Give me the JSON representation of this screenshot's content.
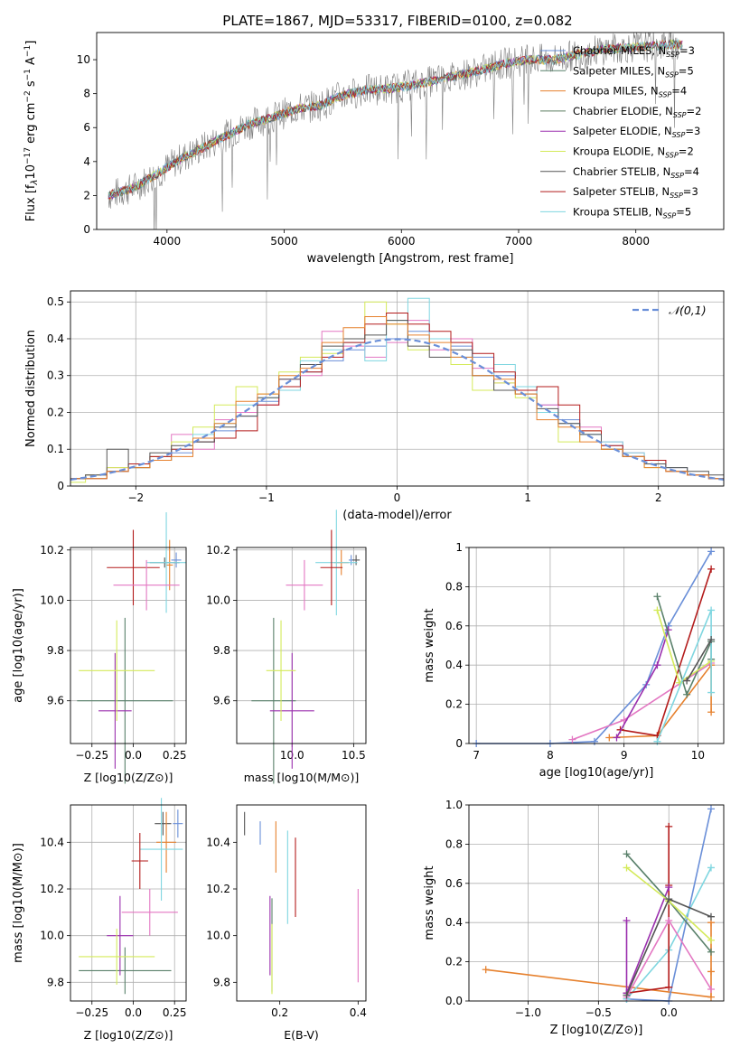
{
  "figure": {
    "title": "PLATE=1867, MJD=53317, FIBERID=0100, z=0.082"
  },
  "chart_data": [
    {
      "id": "spectrum",
      "type": "line",
      "title": "PLATE=1867, MJD=53317, FIBERID=0100, z=0.082",
      "xlabel": "wavelength [Angstrom, rest frame]",
      "ylabel": "Flux [f_λ 10^-17 erg cm^-2 s^-1 A^-1]",
      "xlim": [
        3400,
        8750
      ],
      "ylim": [
        0,
        11.6
      ],
      "xticks": [
        4000,
        5000,
        6000,
        7000,
        8000
      ],
      "yticks": [
        0,
        2,
        4,
        6,
        8,
        10
      ],
      "grid": false,
      "legend_position": "top-right",
      "data_series": {
        "name": "",
        "color": "#808080",
        "x": [
          3500,
          3700,
          3900,
          4100,
          4300,
          4500,
          4700,
          4900,
          5100,
          5300,
          5500,
          5700,
          5900,
          6100,
          6300,
          6500,
          6700,
          6900,
          7100,
          7300,
          7500,
          7700,
          7900,
          8100,
          8300
        ],
        "y": [
          2.0,
          2.4,
          3.2,
          4.1,
          4.8,
          5.5,
          6.2,
          6.6,
          7.1,
          7.3,
          7.9,
          8.2,
          8.3,
          8.5,
          8.8,
          9.1,
          9.4,
          9.8,
          10.0,
          10.0,
          10.3,
          10.6,
          10.7,
          10.8,
          10.9
        ]
      },
      "legend": [
        {
          "label": "Chabrier MILES",
          "nssp": "3",
          "color": "#6a8fd8"
        },
        {
          "label": "Salpeter MILES",
          "nssp": "5",
          "color": "#59806a"
        },
        {
          "label": "Kroupa MILES",
          "nssp": "4",
          "color": "#e6812e"
        },
        {
          "label": "Chabrier ELODIE",
          "nssp": "2",
          "color": "#5b7d5f"
        },
        {
          "label": "Salpeter ELODIE",
          "nssp": "3",
          "color": "#9b2fae"
        },
        {
          "label": "Kroupa ELODIE",
          "nssp": "2",
          "color": "#d4ea5a"
        },
        {
          "label": "Chabrier STELIB",
          "nssp": "4",
          "color": "#555555"
        },
        {
          "label": "Salpeter STELIB",
          "nssp": "3",
          "color": "#b31b1b"
        },
        {
          "label": "Kroupa STELIB",
          "nssp": "5",
          "color": "#7fd6e0"
        }
      ]
    },
    {
      "id": "residuals",
      "type": "histogram",
      "xlabel": "(data-model)/error",
      "ylabel": "Normed distribution",
      "xlim": [
        -2.5,
        2.5
      ],
      "ylim": [
        0,
        0.53
      ],
      "xticks": [
        -2,
        -1,
        0,
        1,
        2
      ],
      "yticks": [
        0.0,
        0.1,
        0.2,
        0.3,
        0.4,
        0.5
      ],
      "grid": true,
      "legend_position": "top-right",
      "reference_curve": {
        "label": "𝒩(0,1)",
        "color": "#6a8fd8",
        "style": "dashed"
      },
      "bin_width": 0.1,
      "series": [
        {
          "color": "#6a8fd8",
          "values": [
            0.02,
            0.03,
            0.04,
            0.05,
            0.07,
            0.09,
            0.12,
            0.15,
            0.19,
            0.23,
            0.27,
            0.31,
            0.34,
            0.37,
            0.38,
            0.4,
            0.42,
            0.4,
            0.38,
            0.35,
            0.3,
            0.26,
            0.22,
            0.18,
            0.14,
            0.11,
            0.08,
            0.06,
            0.04,
            0.03,
            0.02
          ]
        },
        {
          "color": "#e377c2",
          "values": [
            0.02,
            0.03,
            0.05,
            0.06,
            0.08,
            0.14,
            0.1,
            0.18,
            0.2,
            0.22,
            0.29,
            0.3,
            0.42,
            0.38,
            0.35,
            0.39,
            0.45,
            0.37,
            0.4,
            0.32,
            0.28,
            0.26,
            0.22,
            0.17,
            0.16,
            0.12,
            0.09,
            0.07,
            0.05,
            0.03,
            0.02
          ]
        },
        {
          "color": "#d4ea5a",
          "values": [
            0.01,
            0.03,
            0.05,
            0.05,
            0.08,
            0.12,
            0.16,
            0.22,
            0.27,
            0.25,
            0.31,
            0.35,
            0.36,
            0.4,
            0.5,
            0.44,
            0.37,
            0.4,
            0.33,
            0.26,
            0.28,
            0.24,
            0.2,
            0.12,
            0.15,
            0.1,
            0.08,
            0.05,
            0.04,
            0.03,
            0.02
          ]
        },
        {
          "color": "#7fd6e0",
          "values": [
            0.02,
            0.02,
            0.04,
            0.06,
            0.07,
            0.1,
            0.14,
            0.17,
            0.22,
            0.24,
            0.26,
            0.34,
            0.37,
            0.39,
            0.34,
            0.45,
            0.51,
            0.4,
            0.35,
            0.3,
            0.33,
            0.27,
            0.2,
            0.17,
            0.14,
            0.12,
            0.09,
            0.06,
            0.05,
            0.03,
            0.02
          ]
        },
        {
          "color": "#b31b1b",
          "values": [
            0.02,
            0.02,
            0.04,
            0.06,
            0.08,
            0.1,
            0.12,
            0.13,
            0.15,
            0.22,
            0.27,
            0.31,
            0.35,
            0.39,
            0.44,
            0.47,
            0.44,
            0.42,
            0.39,
            0.36,
            0.31,
            0.26,
            0.27,
            0.22,
            0.15,
            0.11,
            0.08,
            0.07,
            0.04,
            0.03,
            0.02
          ]
        },
        {
          "color": "#555555",
          "values": [
            0.02,
            0.03,
            0.1,
            0.05,
            0.09,
            0.11,
            0.12,
            0.16,
            0.19,
            0.24,
            0.29,
            0.33,
            0.38,
            0.4,
            0.41,
            0.45,
            0.38,
            0.35,
            0.37,
            0.3,
            0.26,
            0.25,
            0.21,
            0.17,
            0.14,
            0.1,
            0.08,
            0.06,
            0.05,
            0.04,
            0.03
          ]
        },
        {
          "color": "#e6812e",
          "values": [
            0.02,
            0.02,
            0.04,
            0.05,
            0.07,
            0.08,
            0.13,
            0.17,
            0.23,
            0.25,
            0.3,
            0.32,
            0.39,
            0.43,
            0.46,
            0.44,
            0.41,
            0.39,
            0.35,
            0.3,
            0.29,
            0.25,
            0.18,
            0.16,
            0.12,
            0.1,
            0.08,
            0.05,
            0.04,
            0.03,
            0.02
          ]
        }
      ]
    },
    {
      "id": "age-vs-z",
      "type": "scatter",
      "xlabel": "Z [log10(Z/Z⊙)]",
      "ylabel": "age [log10(age/yr)]",
      "xlim": [
        -0.38,
        0.32
      ],
      "ylim": [
        9.43,
        10.21
      ],
      "xticks": [
        -0.25,
        0.0,
        0.25
      ],
      "yticks": [
        9.6,
        9.8,
        10.0,
        10.2
      ],
      "grid": true,
      "points": [
        {
          "color": "#6a8fd8",
          "x": 0.26,
          "y": 10.16,
          "xerr": 0.03,
          "yerr": 0.03
        },
        {
          "color": "#555555",
          "x": 0.19,
          "y": 10.15,
          "xerr": 0.09,
          "yerr": 0.02
        },
        {
          "color": "#e6812e",
          "x": 0.22,
          "y": 10.14,
          "xerr": 0.02,
          "yerr": 0.1
        },
        {
          "color": "#7fd6e0",
          "x": 0.2,
          "y": 10.15,
          "xerr": 0.12,
          "yerr": 0.2
        },
        {
          "color": "#b31b1b",
          "x": 0.0,
          "y": 10.13,
          "xerr": 0.16,
          "yerr": 0.15
        },
        {
          "color": "#e377c2",
          "x": 0.08,
          "y": 10.06,
          "xerr": 0.2,
          "yerr": 0.1
        },
        {
          "color": "#59806a",
          "x": -0.05,
          "y": 9.6,
          "xerr": 0.29,
          "yerr": 0.33
        },
        {
          "color": "#9b2fae",
          "x": -0.11,
          "y": 9.56,
          "xerr": 0.1,
          "yerr": 0.23
        },
        {
          "color": "#d4ea5a",
          "x": -0.1,
          "y": 9.72,
          "xerr": 0.23,
          "yerr": 0.2
        }
      ]
    },
    {
      "id": "age-vs-mass",
      "type": "scatter",
      "xlabel": "mass [log10(M/M⊙)]",
      "ylabel": "",
      "xlim": [
        9.55,
        10.6
      ],
      "ylim": [
        9.43,
        10.21
      ],
      "xticks": [
        10.0,
        10.5
      ],
      "yticks": [
        9.6,
        9.8,
        10.0,
        10.2
      ],
      "grid": true,
      "points": [
        {
          "color": "#6a8fd8",
          "x": 10.48,
          "y": 10.16,
          "xerr": 0.02,
          "yerr": 0.02
        },
        {
          "color": "#555555",
          "x": 10.52,
          "y": 10.16,
          "xerr": 0.03,
          "yerr": 0.02
        },
        {
          "color": "#e6812e",
          "x": 10.4,
          "y": 10.15,
          "xerr": 0.06,
          "yerr": 0.05
        },
        {
          "color": "#7fd6e0",
          "x": 10.36,
          "y": 10.15,
          "xerr": 0.17,
          "yerr": 0.21
        },
        {
          "color": "#b31b1b",
          "x": 10.32,
          "y": 10.13,
          "xerr": 0.09,
          "yerr": 0.15
        },
        {
          "color": "#e377c2",
          "x": 10.1,
          "y": 10.06,
          "xerr": 0.15,
          "yerr": 0.1
        },
        {
          "color": "#59806a",
          "x": 9.85,
          "y": 9.6,
          "xerr": 0.18,
          "yerr": 0.33
        },
        {
          "color": "#9b2fae",
          "x": 10.0,
          "y": 9.56,
          "xerr": 0.18,
          "yerr": 0.23
        },
        {
          "color": "#d4ea5a",
          "x": 9.91,
          "y": 9.72,
          "xerr": 0.12,
          "yerr": 0.2
        }
      ]
    },
    {
      "id": "mass-weight-vs-age",
      "type": "line",
      "xlabel": "age [log10(age/yr)]",
      "ylabel": "mass weight",
      "xlim": [
        6.9,
        10.35
      ],
      "ylim": [
        0,
        1.0
      ],
      "xticks": [
        7,
        8,
        9,
        10
      ],
      "yticks": [
        0.0,
        0.2,
        0.4,
        0.6,
        0.8,
        1.0
      ],
      "grid": true,
      "series": [
        {
          "color": "#6a8fd8",
          "x": [
            7.0,
            8.0,
            8.6,
            9.3,
            9.6,
            10.18
          ],
          "y": [
            0.0,
            0.0,
            0.01,
            0.3,
            0.6,
            0.98
          ]
        },
        {
          "color": "#e6812e",
          "x": [
            8.8,
            9.45,
            10.18,
            10.18
          ],
          "y": [
            0.03,
            0.04,
            0.4,
            0.16
          ]
        },
        {
          "color": "#e377c2",
          "x": [
            8.3,
            9.0,
            10.18
          ],
          "y": [
            0.02,
            0.12,
            0.41
          ]
        },
        {
          "color": "#b31b1b",
          "x": [
            8.95,
            9.45,
            10.18
          ],
          "y": [
            0.07,
            0.04,
            0.89
          ]
        },
        {
          "color": "#9b2fae",
          "x": [
            8.9,
            9.45,
            9.6
          ],
          "y": [
            0.03,
            0.4,
            0.58
          ]
        },
        {
          "color": "#59806a",
          "x": [
            9.45,
            9.85,
            10.18,
            10.18
          ],
          "y": [
            0.75,
            0.25,
            0.52,
            0.43
          ]
        },
        {
          "color": "#d4ea5a",
          "x": [
            9.45,
            9.75,
            10.18
          ],
          "y": [
            0.68,
            0.31,
            0.42
          ]
        },
        {
          "color": "#7fd6e0",
          "x": [
            9.45,
            10.18,
            10.18
          ],
          "y": [
            0.01,
            0.68,
            0.26
          ]
        },
        {
          "color": "#555555",
          "x": [
            9.85,
            10.18
          ],
          "y": [
            0.32,
            0.53
          ]
        }
      ]
    },
    {
      "id": "mass-vs-z",
      "type": "scatter",
      "xlabel": "Z [log10(Z/Z⊙)]",
      "ylabel": "mass [log10(M/M⊙)]",
      "xlim": [
        -0.38,
        0.32
      ],
      "ylim": [
        9.72,
        10.56
      ],
      "xticks": [
        -0.25,
        0.0,
        0.25
      ],
      "yticks": [
        9.8,
        10.0,
        10.2,
        10.4
      ],
      "grid": true,
      "points": [
        {
          "color": "#6a8fd8",
          "x": 0.27,
          "y": 10.48,
          "xerr": 0.03,
          "yerr": 0.06
        },
        {
          "color": "#555555",
          "x": 0.18,
          "y": 10.48,
          "xerr": 0.05,
          "yerr": 0.05
        },
        {
          "color": "#e6812e",
          "x": 0.2,
          "y": 10.4,
          "xerr": 0.06,
          "yerr": 0.13
        },
        {
          "color": "#7fd6e0",
          "x": 0.17,
          "y": 10.37,
          "xerr": 0.13,
          "yerr": 0.22
        },
        {
          "color": "#b31b1b",
          "x": 0.04,
          "y": 10.32,
          "xerr": 0.05,
          "yerr": 0.12
        },
        {
          "color": "#e377c2",
          "x": 0.1,
          "y": 10.1,
          "xerr": 0.17,
          "yerr": 0.1
        },
        {
          "color": "#59806a",
          "x": -0.05,
          "y": 9.85,
          "xerr": 0.28,
          "yerr": 0.1
        },
        {
          "color": "#9b2fae",
          "x": -0.08,
          "y": 10.0,
          "xerr": 0.08,
          "yerr": 0.17
        },
        {
          "color": "#d4ea5a",
          "x": -0.1,
          "y": 9.91,
          "xerr": 0.23,
          "yerr": 0.12
        }
      ]
    },
    {
      "id": "mass-vs-ebv",
      "type": "scatter",
      "xlabel": "E(B-V)",
      "ylabel": "",
      "xlim": [
        0.09,
        0.42
      ],
      "ylim": [
        9.72,
        10.56
      ],
      "xticks": [
        0.2,
        0.4
      ],
      "yticks": [
        9.8,
        10.0,
        10.2,
        10.4
      ],
      "grid": false,
      "points": [
        {
          "color": "#555555",
          "x": 0.11,
          "y": 10.48,
          "yerr": 0.05
        },
        {
          "color": "#6a8fd8",
          "x": 0.15,
          "y": 10.44,
          "yerr": 0.05
        },
        {
          "color": "#e6812e",
          "x": 0.19,
          "y": 10.38,
          "yerr": 0.11
        },
        {
          "color": "#59806a",
          "x": 0.18,
          "y": 9.96,
          "yerr": 0.2
        },
        {
          "color": "#9b2fae",
          "x": 0.175,
          "y": 10.0,
          "yerr": 0.17
        },
        {
          "color": "#d4ea5a",
          "x": 0.18,
          "y": 9.9,
          "yerr": 0.15
        },
        {
          "color": "#7fd6e0",
          "x": 0.22,
          "y": 10.25,
          "yerr": 0.2
        },
        {
          "color": "#b31b1b",
          "x": 0.24,
          "y": 10.25,
          "yerr": 0.17
        },
        {
          "color": "#e377c2",
          "x": 0.4,
          "y": 10.0,
          "yerr": 0.2
        }
      ]
    },
    {
      "id": "mass-weight-vs-z",
      "type": "line",
      "xlabel": "Z [log10(Z/Z⊙)]",
      "ylabel": "mass weight",
      "xlim": [
        -1.42,
        0.39
      ],
      "ylim": [
        0,
        1.0
      ],
      "xticks": [
        -1.0,
        -0.5,
        0.0
      ],
      "yticks": [
        0.0,
        0.2,
        0.4,
        0.6,
        0.8,
        1.0
      ],
      "grid": true,
      "series": [
        {
          "color": "#e6812e",
          "x": [
            -1.3,
            0.3,
            0.3,
            0.3
          ],
          "y": [
            0.16,
            0.02,
            0.4,
            0.15
          ]
        },
        {
          "color": "#6a8fd8",
          "x": [
            -0.3,
            0.0,
            0.3
          ],
          "y": [
            0.01,
            0.0,
            0.98
          ]
        },
        {
          "color": "#7fd6e0",
          "x": [
            -0.3,
            0.0,
            0.3
          ],
          "y": [
            0.01,
            0.26,
            0.68
          ]
        },
        {
          "color": "#b31b1b",
          "x": [
            -0.3,
            0.0,
            0.0,
            0.0
          ],
          "y": [
            0.04,
            0.07,
            0.89,
            0.59
          ]
        },
        {
          "color": "#9b2fae",
          "x": [
            -0.3,
            -0.3,
            0.0
          ],
          "y": [
            0.41,
            0.04,
            0.58
          ]
        },
        {
          "color": "#59806a",
          "x": [
            -0.3,
            0.0,
            0.3
          ],
          "y": [
            0.75,
            0.51,
            0.25
          ]
        },
        {
          "color": "#d4ea5a",
          "x": [
            -0.3,
            0.0,
            0.3
          ],
          "y": [
            0.68,
            0.51,
            0.31
          ]
        },
        {
          "color": "#e377c2",
          "x": [
            -0.3,
            0.0,
            0.3
          ],
          "y": [
            0.02,
            0.41,
            0.06
          ]
        },
        {
          "color": "#555555",
          "x": [
            -0.3,
            0.0,
            0.3
          ],
          "y": [
            0.03,
            0.52,
            0.43
          ]
        }
      ]
    }
  ]
}
